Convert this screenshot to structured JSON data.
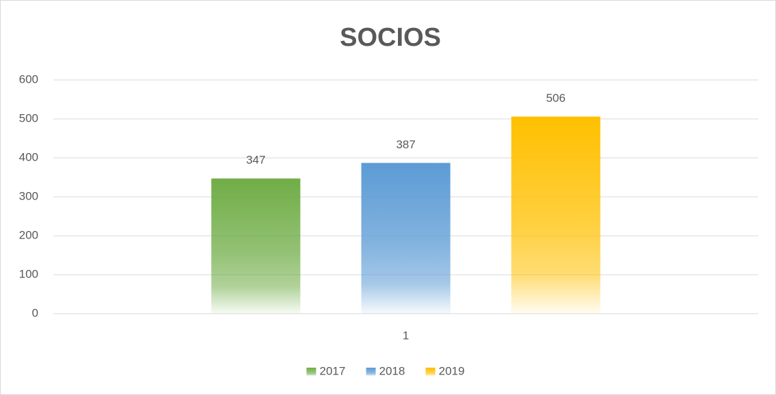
{
  "chart_data": {
    "type": "bar",
    "title": "SOCIOS",
    "categories": [
      "1"
    ],
    "series": [
      {
        "name": "2017",
        "color": "#70ad47",
        "values": [
          347
        ]
      },
      {
        "name": "2018",
        "color": "#5b9bd5",
        "values": [
          387
        ]
      },
      {
        "name": "2019",
        "color": "#ffc000",
        "values": [
          506
        ]
      }
    ],
    "ylim": [
      0,
      600
    ],
    "yticks": [
      0,
      100,
      200,
      300,
      400,
      500,
      600
    ],
    "grid": true,
    "legend": "bottom"
  }
}
